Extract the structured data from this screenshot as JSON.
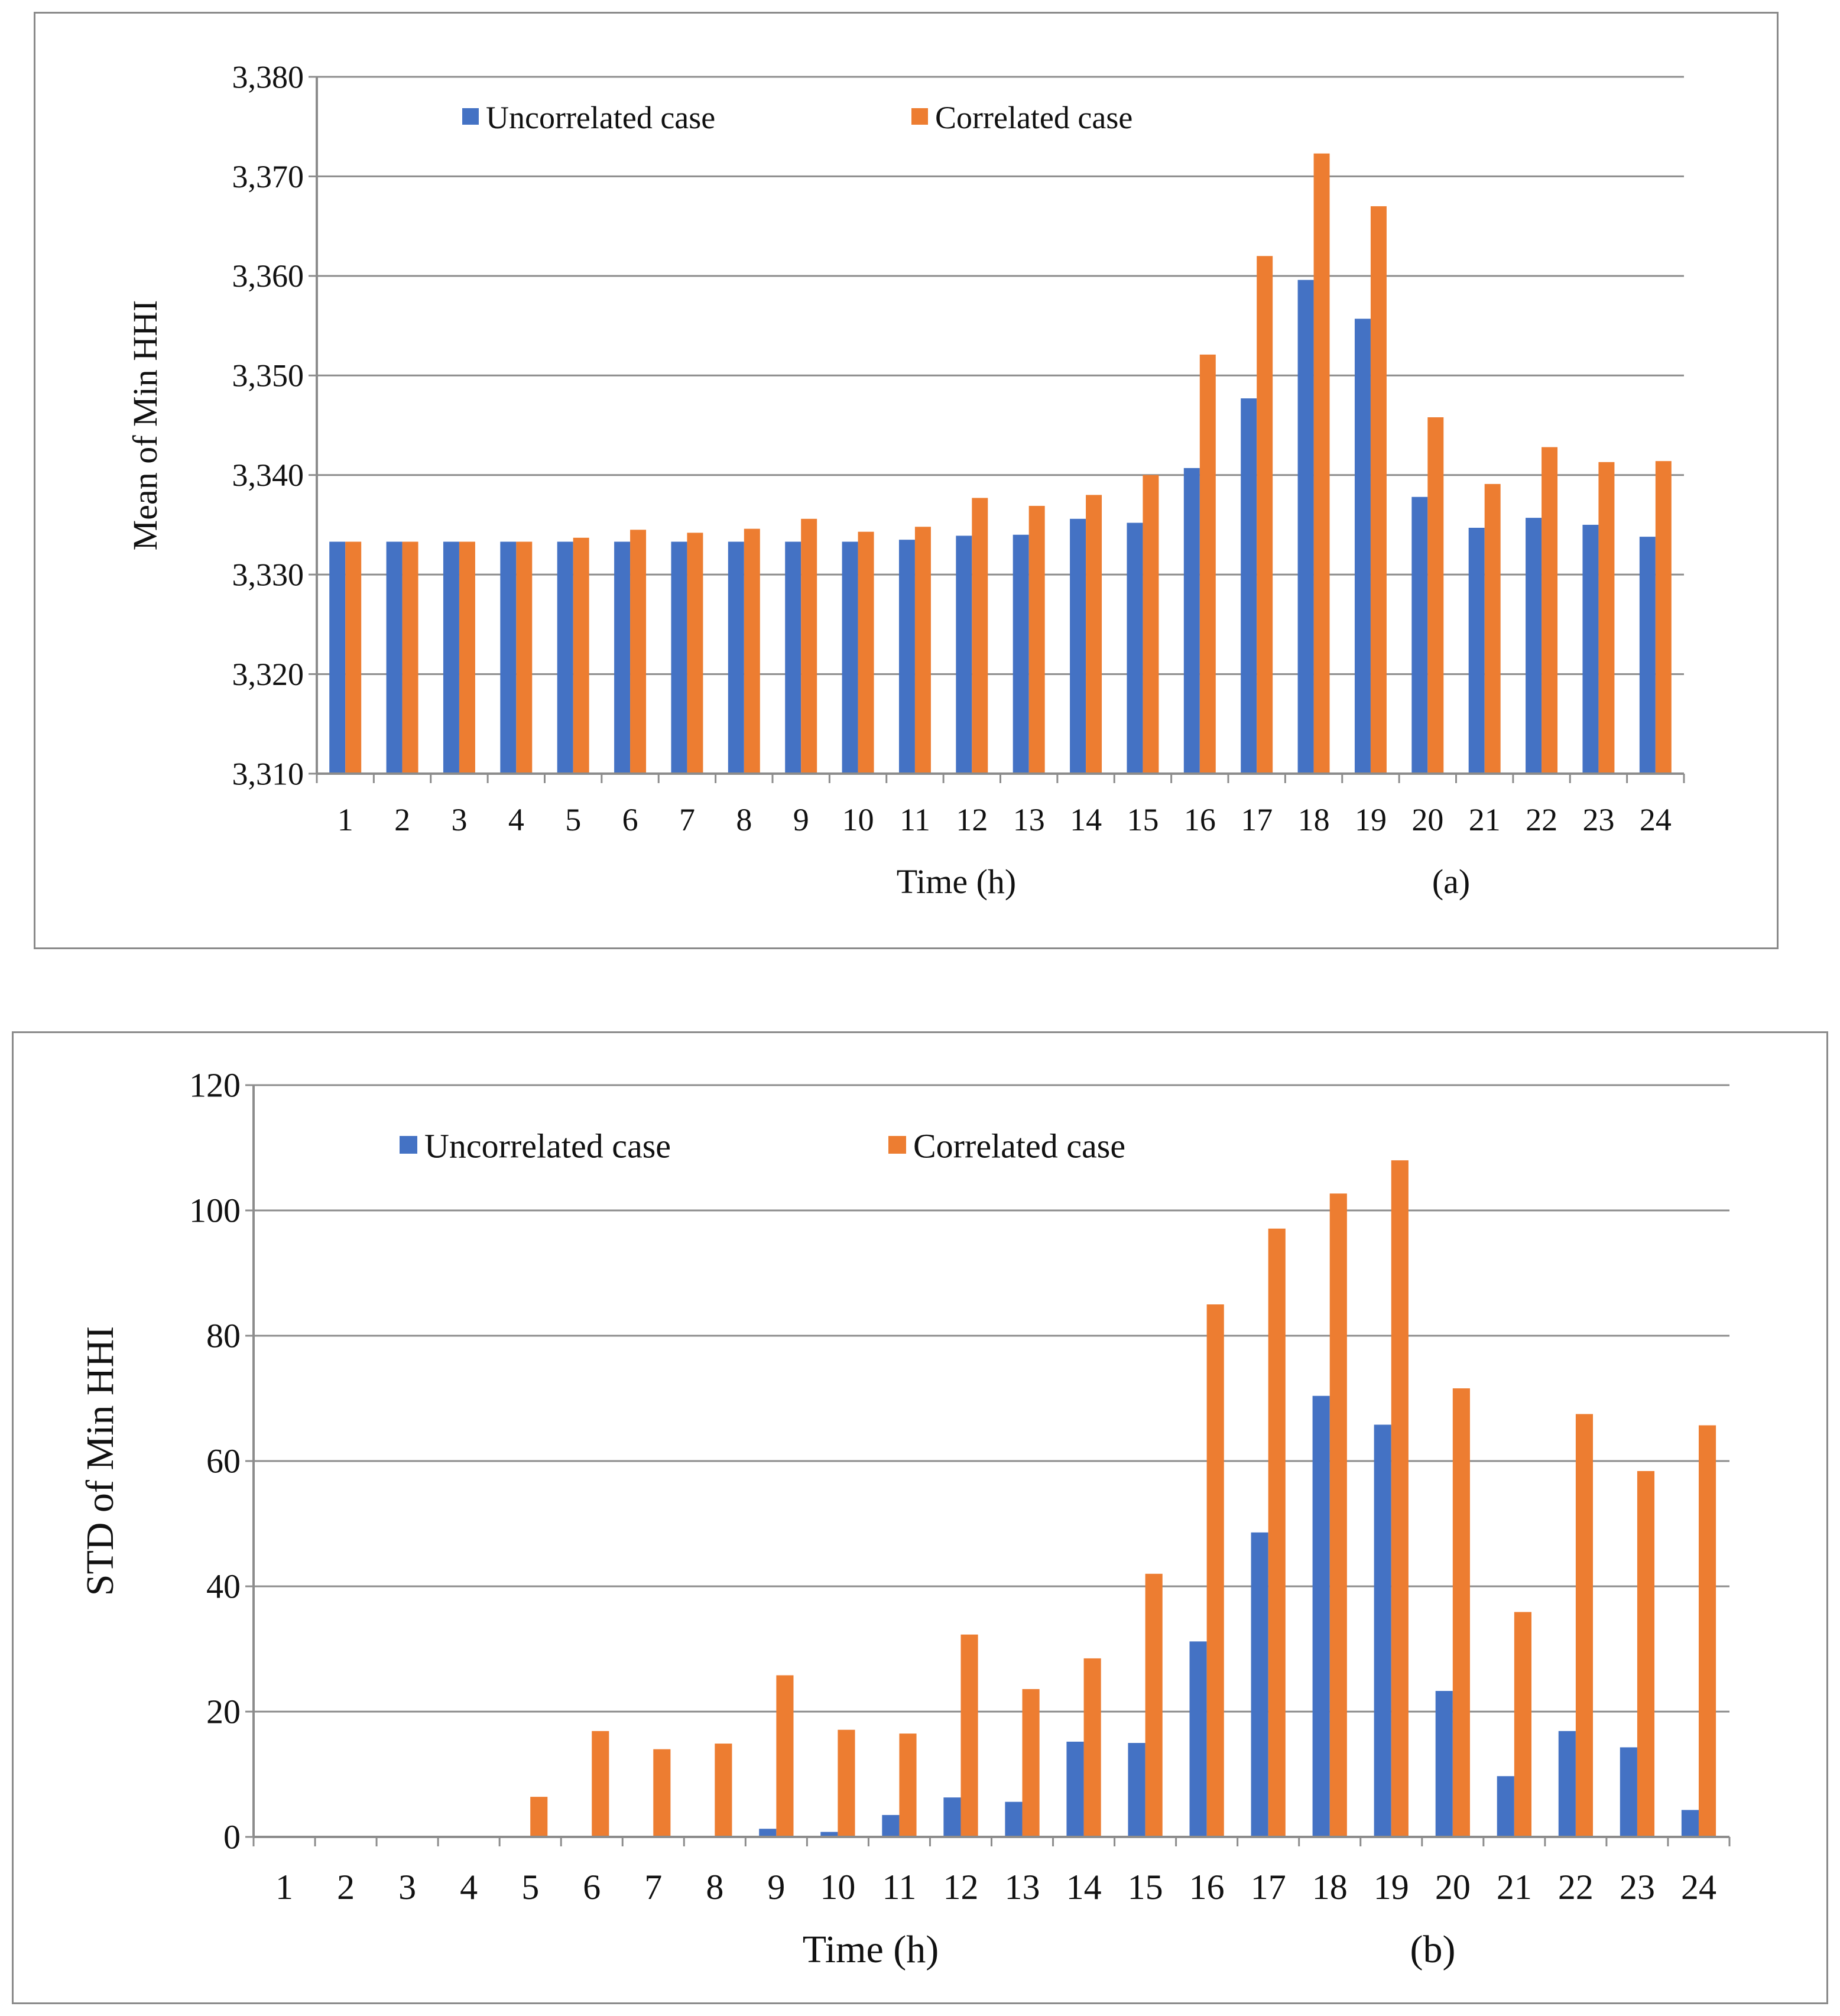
{
  "colors": {
    "uncorrelated": "#4472C4",
    "correlated": "#ED7D31",
    "grid": "#8c8c8c",
    "axis": "#8c8c8c",
    "frame": "#8a8a8a"
  },
  "chart_data": [
    {
      "type": "bar",
      "panel_label": "(a)",
      "xlabel": "Time (h)",
      "ylabel": "Mean of Min HHI",
      "ylim": [
        3310,
        3380
      ],
      "ytick_step": 10,
      "yticks": [
        "3,310",
        "3,320",
        "3,330",
        "3,340",
        "3,350",
        "3,360",
        "3,370",
        "3,380"
      ],
      "grid": true,
      "legend_position": "top-left",
      "categories": [
        "1",
        "2",
        "3",
        "4",
        "5",
        "6",
        "7",
        "8",
        "9",
        "10",
        "11",
        "12",
        "13",
        "14",
        "15",
        "16",
        "17",
        "18",
        "19",
        "20",
        "21",
        "22",
        "23",
        "24"
      ],
      "series": [
        {
          "name": "Uncorrelated case",
          "color_key": "uncorrelated",
          "values": [
            3333.3,
            3333.3,
            3333.3,
            3333.3,
            3333.3,
            3333.3,
            3333.3,
            3333.3,
            3333.3,
            3333.3,
            3333.5,
            3333.9,
            3334.0,
            3335.6,
            3335.2,
            3340.7,
            3347.7,
            3359.6,
            3355.7,
            3337.8,
            3334.7,
            3335.7,
            3335.0,
            3333.8
          ]
        },
        {
          "name": "Correlated case",
          "color_key": "correlated",
          "values": [
            3333.3,
            3333.3,
            3333.3,
            3333.3,
            3333.7,
            3334.5,
            3334.2,
            3334.6,
            3335.6,
            3334.3,
            3334.8,
            3337.7,
            3336.9,
            3338.0,
            3340.0,
            3352.1,
            3362.0,
            3372.3,
            3367.0,
            3345.8,
            3339.1,
            3342.8,
            3341.3,
            3341.4
          ]
        }
      ]
    },
    {
      "type": "bar",
      "panel_label": "(b)",
      "xlabel": "Time (h)",
      "ylabel": "STD of Min HHI",
      "ylim": [
        0,
        120
      ],
      "ytick_step": 20,
      "yticks": [
        "0",
        "20",
        "40",
        "60",
        "80",
        "100",
        "120"
      ],
      "grid": true,
      "legend_position": "top-left",
      "categories": [
        "1",
        "2",
        "3",
        "4",
        "5",
        "6",
        "7",
        "8",
        "9",
        "10",
        "11",
        "12",
        "13",
        "14",
        "15",
        "16",
        "17",
        "18",
        "19",
        "20",
        "21",
        "22",
        "23",
        "24"
      ],
      "series": [
        {
          "name": "Uncorrelated case",
          "color_key": "uncorrelated",
          "values": [
            0,
            0,
            0,
            0,
            0,
            0,
            0,
            0,
            1.3,
            0.8,
            3.5,
            6.3,
            5.6,
            15.2,
            15.0,
            31.2,
            48.6,
            70.4,
            65.8,
            23.3,
            9.7,
            16.9,
            14.3,
            4.3
          ]
        },
        {
          "name": "Correlated case",
          "color_key": "correlated",
          "values": [
            0,
            0,
            0,
            0,
            6.4,
            16.9,
            14.0,
            14.9,
            25.8,
            17.1,
            16.5,
            32.3,
            23.6,
            28.5,
            42.0,
            85.0,
            97.1,
            102.7,
            108.0,
            71.6,
            35.9,
            67.5,
            58.4,
            65.7
          ]
        }
      ]
    }
  ]
}
